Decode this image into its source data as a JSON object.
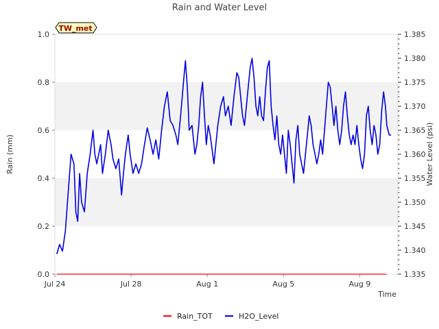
{
  "chart_data": {
    "type": "line",
    "title": "Rain and Water Level",
    "xlabel": "Time",
    "ylabel_left": "Rain (mm)",
    "ylabel_right": "Water Level (psi)",
    "station_tag": "TW_met",
    "x_tick_labels": [
      "Jul 24",
      "Jul 28",
      "Aug 1",
      "Aug 5",
      "Aug 9"
    ],
    "x_tick_days": [
      0,
      4,
      8,
      12,
      16
    ],
    "xlim_days": [
      0,
      18
    ],
    "ylim_left": [
      0.0,
      1.0
    ],
    "y_ticks_left": [
      "0.0",
      "0.2",
      "0.4",
      "0.6",
      "0.8",
      "1.0"
    ],
    "ylim_right": [
      1.335,
      1.385
    ],
    "y_ticks_right": [
      "1.335",
      "1.340",
      "1.345",
      "1.350",
      "1.355",
      "1.360",
      "1.365",
      "1.370",
      "1.375",
      "1.380",
      "1.385"
    ],
    "background_bands": [
      [
        0.2,
        0.4
      ],
      [
        0.6,
        0.8
      ]
    ],
    "legend_position": "bottom-center",
    "colors": {
      "rain": "#ff0000",
      "water": "#0000dd",
      "band": "#f2f2f2",
      "tag_bg": "#ffffc0",
      "tag_text": "#990000"
    },
    "series": [
      {
        "name": "Rain_TOT",
        "axis": "left",
        "points": [
          [
            0.1,
            0.0
          ],
          [
            17.4,
            0.0
          ]
        ]
      },
      {
        "name": "H2O_Level",
        "axis": "right",
        "points": [
          [
            0.1,
            1.3392
          ],
          [
            0.25,
            1.3412
          ],
          [
            0.4,
            1.3398
          ],
          [
            0.55,
            1.344
          ],
          [
            0.7,
            1.352
          ],
          [
            0.85,
            1.36
          ],
          [
            1.0,
            1.358
          ],
          [
            1.1,
            1.348
          ],
          [
            1.2,
            1.346
          ],
          [
            1.3,
            1.356
          ],
          [
            1.4,
            1.35
          ],
          [
            1.55,
            1.348
          ],
          [
            1.7,
            1.356
          ],
          [
            1.85,
            1.36
          ],
          [
            2.0,
            1.365
          ],
          [
            2.1,
            1.36
          ],
          [
            2.2,
            1.358
          ],
          [
            2.3,
            1.36
          ],
          [
            2.4,
            1.362
          ],
          [
            2.5,
            1.356
          ],
          [
            2.65,
            1.36
          ],
          [
            2.8,
            1.365
          ],
          [
            2.95,
            1.362
          ],
          [
            3.05,
            1.359
          ],
          [
            3.2,
            1.357
          ],
          [
            3.35,
            1.359
          ],
          [
            3.5,
            1.3515
          ],
          [
            3.6,
            1.356
          ],
          [
            3.7,
            1.36
          ],
          [
            3.85,
            1.364
          ],
          [
            3.95,
            1.36
          ],
          [
            4.1,
            1.356
          ],
          [
            4.25,
            1.358
          ],
          [
            4.4,
            1.356
          ],
          [
            4.55,
            1.358
          ],
          [
            4.7,
            1.362
          ],
          [
            4.85,
            1.3655
          ],
          [
            5.0,
            1.363
          ],
          [
            5.15,
            1.36
          ],
          [
            5.3,
            1.363
          ],
          [
            5.45,
            1.359
          ],
          [
            5.6,
            1.365
          ],
          [
            5.75,
            1.37
          ],
          [
            5.9,
            1.373
          ],
          [
            6.05,
            1.367
          ],
          [
            6.2,
            1.366
          ],
          [
            6.35,
            1.364
          ],
          [
            6.45,
            1.362
          ],
          [
            6.6,
            1.368
          ],
          [
            6.75,
            1.375
          ],
          [
            6.85,
            1.3795
          ],
          [
            6.95,
            1.374
          ],
          [
            7.05,
            1.365
          ],
          [
            7.2,
            1.366
          ],
          [
            7.35,
            1.36
          ],
          [
            7.45,
            1.362
          ],
          [
            7.55,
            1.366
          ],
          [
            7.65,
            1.372
          ],
          [
            7.75,
            1.375
          ],
          [
            7.85,
            1.368
          ],
          [
            7.95,
            1.362
          ],
          [
            8.05,
            1.366
          ],
          [
            8.15,
            1.364
          ],
          [
            8.25,
            1.361
          ],
          [
            8.35,
            1.358
          ],
          [
            8.45,
            1.362
          ],
          [
            8.55,
            1.366
          ],
          [
            8.7,
            1.37
          ],
          [
            8.85,
            1.372
          ],
          [
            8.95,
            1.368
          ],
          [
            9.1,
            1.37
          ],
          [
            9.25,
            1.366
          ],
          [
            9.4,
            1.372
          ],
          [
            9.55,
            1.377
          ],
          [
            9.65,
            1.376
          ],
          [
            9.75,
            1.372
          ],
          [
            9.85,
            1.368
          ],
          [
            9.95,
            1.366
          ],
          [
            10.05,
            1.37
          ],
          [
            10.15,
            1.374
          ],
          [
            10.25,
            1.378
          ],
          [
            10.35,
            1.38
          ],
          [
            10.45,
            1.376
          ],
          [
            10.55,
            1.37
          ],
          [
            10.65,
            1.368
          ],
          [
            10.75,
            1.372
          ],
          [
            10.85,
            1.368
          ],
          [
            10.95,
            1.367
          ],
          [
            11.05,
            1.373
          ],
          [
            11.15,
            1.378
          ],
          [
            11.25,
            1.3795
          ],
          [
            11.35,
            1.37
          ],
          [
            11.45,
            1.366
          ],
          [
            11.55,
            1.363
          ],
          [
            11.65,
            1.368
          ],
          [
            11.75,
            1.362
          ],
          [
            11.85,
            1.36
          ],
          [
            11.95,
            1.364
          ],
          [
            12.05,
            1.36
          ],
          [
            12.15,
            1.356
          ],
          [
            12.25,
            1.365
          ],
          [
            12.35,
            1.362
          ],
          [
            12.45,
            1.358
          ],
          [
            12.55,
            1.354
          ],
          [
            12.65,
            1.363
          ],
          [
            12.75,
            1.366
          ],
          [
            12.85,
            1.36
          ],
          [
            12.95,
            1.358
          ],
          [
            13.05,
            1.356
          ],
          [
            13.15,
            1.36
          ],
          [
            13.25,
            1.364
          ],
          [
            13.35,
            1.368
          ],
          [
            13.45,
            1.366
          ],
          [
            13.55,
            1.362
          ],
          [
            13.65,
            1.36
          ],
          [
            13.75,
            1.358
          ],
          [
            13.85,
            1.36
          ],
          [
            13.95,
            1.363
          ],
          [
            14.05,
            1.36
          ],
          [
            14.15,
            1.365
          ],
          [
            14.25,
            1.37
          ],
          [
            14.35,
            1.375
          ],
          [
            14.45,
            1.374
          ],
          [
            14.55,
            1.37
          ],
          [
            14.65,
            1.366
          ],
          [
            14.75,
            1.37
          ],
          [
            14.85,
            1.365
          ],
          [
            14.95,
            1.362
          ],
          [
            15.05,
            1.365
          ],
          [
            15.15,
            1.37
          ],
          [
            15.25,
            1.373
          ],
          [
            15.35,
            1.368
          ],
          [
            15.45,
            1.364
          ],
          [
            15.55,
            1.362
          ],
          [
            15.65,
            1.364
          ],
          [
            15.75,
            1.362
          ],
          [
            15.85,
            1.366
          ],
          [
            15.95,
            1.362
          ],
          [
            16.05,
            1.359
          ],
          [
            16.15,
            1.357
          ],
          [
            16.25,
            1.36
          ],
          [
            16.35,
            1.368
          ],
          [
            16.45,
            1.37
          ],
          [
            16.55,
            1.365
          ],
          [
            16.65,
            1.362
          ],
          [
            16.75,
            1.366
          ],
          [
            16.85,
            1.364
          ],
          [
            16.95,
            1.36
          ],
          [
            17.05,
            1.362
          ],
          [
            17.15,
            1.369
          ],
          [
            17.25,
            1.373
          ],
          [
            17.35,
            1.37
          ],
          [
            17.42,
            1.366
          ],
          [
            17.55,
            1.364
          ],
          [
            17.65,
            1.364
          ]
        ]
      }
    ]
  }
}
